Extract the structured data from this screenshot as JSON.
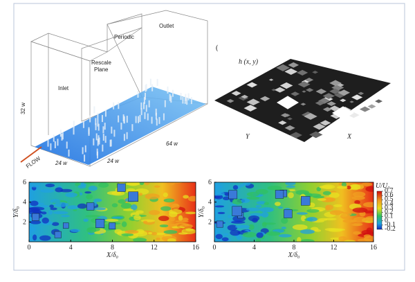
{
  "panel_a": {
    "inlet": "Inlet",
    "rescale": "Rescale",
    "plane": "Plane",
    "periodic": "Periodic",
    "outlet": "Outlet",
    "height": "32 w",
    "width": "24 w",
    "width2": "24 w",
    "length": "64 w",
    "flow": "FLOW"
  },
  "panel_b": {
    "marker": "(",
    "surface_label": "h (x, y)",
    "y_label": "Y",
    "x_label": "X"
  },
  "contour_plots": [
    {
      "xlim": [
        0,
        16
      ],
      "xticks": [
        0,
        4,
        8,
        12,
        16
      ],
      "ylim": [
        0,
        6
      ],
      "yticks": [
        2,
        4,
        6
      ],
      "x_label": "X/δ₀",
      "y_label": "Y/δ₀"
    },
    {
      "xlim": [
        0,
        16
      ],
      "xticks": [
        0,
        4,
        8,
        12,
        16
      ],
      "ylim": [
        0,
        6
      ],
      "yticks": [
        2,
        4,
        6
      ],
      "x_label": "X/δ₀",
      "y_label": "Y/δ₀"
    }
  ],
  "colorbar": {
    "title": "U/U₀",
    "ticks": [
      0.7,
      0.6,
      0.5,
      0.4,
      0.3,
      0.2,
      0.1,
      0,
      -0.1,
      -0.2
    ]
  }
}
